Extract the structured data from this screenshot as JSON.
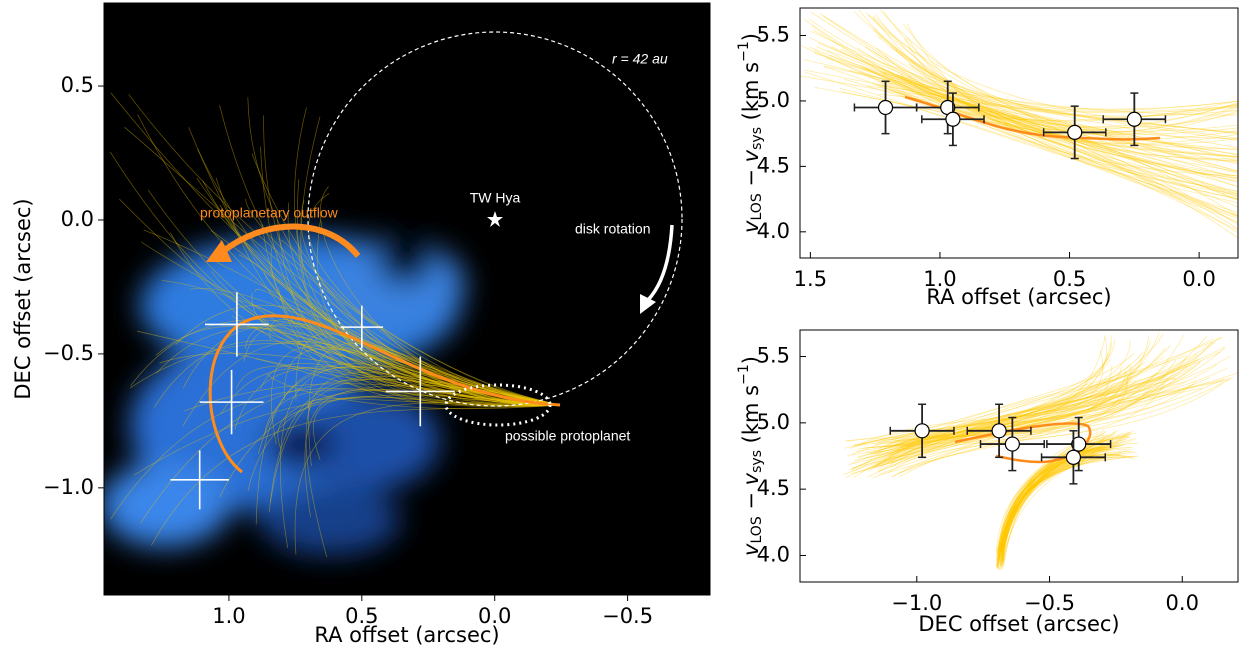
{
  "chart_data": [
    {
      "type": "scatter",
      "xlabel": "RA offset (arcsec)",
      "ylabel": "DEC offset (arcsec)",
      "xlim": [
        1.47,
        -0.81
      ],
      "ylim": [
        -1.4,
        0.81
      ],
      "xticks": [
        {
          "value": 1,
          "label": "1.0"
        },
        0.5,
        {
          "value": 0,
          "label": "0.0"
        },
        {
          "value": -0.5,
          "label": "−0.5"
        }
      ],
      "yticks": [
        {
          "value": -1,
          "label": "−1.0"
        },
        {
          "value": -0.5,
          "label": "−0.5"
        },
        {
          "value": 0,
          "label": "0.0"
        },
        0.5
      ],
      "circle_label": "r = 42 au",
      "star_label": "TW Hya",
      "rotation_label": "disk rotation",
      "outflow_label": "protoplanetary outflow",
      "planet_label": "possible protoplanet",
      "series": [
        {
          "color": "#ffffff",
          "ecolor": "#ffffff",
          "marker": "none",
          "x": [
            0.97,
            0.5,
            0.99,
            0.28,
            1.11
          ],
          "y": [
            -0.39,
            -0.4,
            -0.68,
            -0.64,
            -0.97
          ],
          "xerr": [
            0.12,
            0.08,
            0.12,
            0.13,
            0.11
          ],
          "yerr": [
            0.12,
            0.08,
            0.12,
            0.13,
            0.11
          ]
        }
      ]
    },
    {
      "type": "scatter",
      "xlabel": "RA offset (arcsec)",
      "ylabel": [
        "v",
        "LOS",
        " − ",
        "v",
        "sys",
        " (km s",
        "−1",
        ")"
      ],
      "xlim": [
        1.54,
        -0.15
      ],
      "ylim": [
        3.8,
        5.71
      ],
      "xticks": [
        1.5,
        {
          "value": 1,
          "label": "1.0"
        },
        0.5,
        {
          "value": 0,
          "label": "0.0"
        }
      ],
      "yticks": [
        {
          "value": 4,
          "label": "4.0"
        },
        4.5,
        {
          "value": 5,
          "label": "5.0"
        },
        5.5
      ],
      "series": [
        {
          "color": "#ffffff",
          "ecolor": "#222222",
          "marker": "circle",
          "x": [
            1.21,
            0.97,
            0.95,
            0.48,
            0.25
          ],
          "y": [
            4.95,
            4.95,
            4.86,
            4.76,
            4.86
          ],
          "xerr": [
            0.12,
            0.12,
            0.12,
            0.12,
            0.12
          ],
          "yerr": [
            0.2,
            0.2,
            0.2,
            0.2,
            0.2
          ]
        }
      ]
    },
    {
      "type": "scatter",
      "xlabel": "DEC offset (arcsec)",
      "ylabel": [
        "v",
        "LOS",
        " − ",
        "v",
        "sys",
        " (km s",
        "−1",
        ")"
      ],
      "xlim": [
        -1.44,
        0.21
      ],
      "ylim": [
        3.8,
        5.7
      ],
      "xticks": [
        {
          "value": -1,
          "label": "−1.0"
        },
        {
          "value": -0.5,
          "label": "−0.5"
        },
        {
          "value": 0,
          "label": "0.0"
        }
      ],
      "yticks": [
        {
          "value": 4,
          "label": "4.0"
        },
        4.5,
        {
          "value": 5,
          "label": "5.0"
        },
        5.5
      ],
      "series": [
        {
          "color": "#ffffff",
          "ecolor": "#222222",
          "marker": "circle",
          "x": [
            -0.98,
            -0.69,
            -0.64,
            -0.39,
            -0.41
          ],
          "y": [
            4.94,
            4.94,
            4.84,
            4.84,
            4.74
          ],
          "xerr": [
            0.12,
            0.12,
            0.12,
            0.12,
            0.12
          ],
          "yerr": [
            0.2,
            0.2,
            0.2,
            0.2,
            0.2
          ]
        }
      ]
    }
  ]
}
